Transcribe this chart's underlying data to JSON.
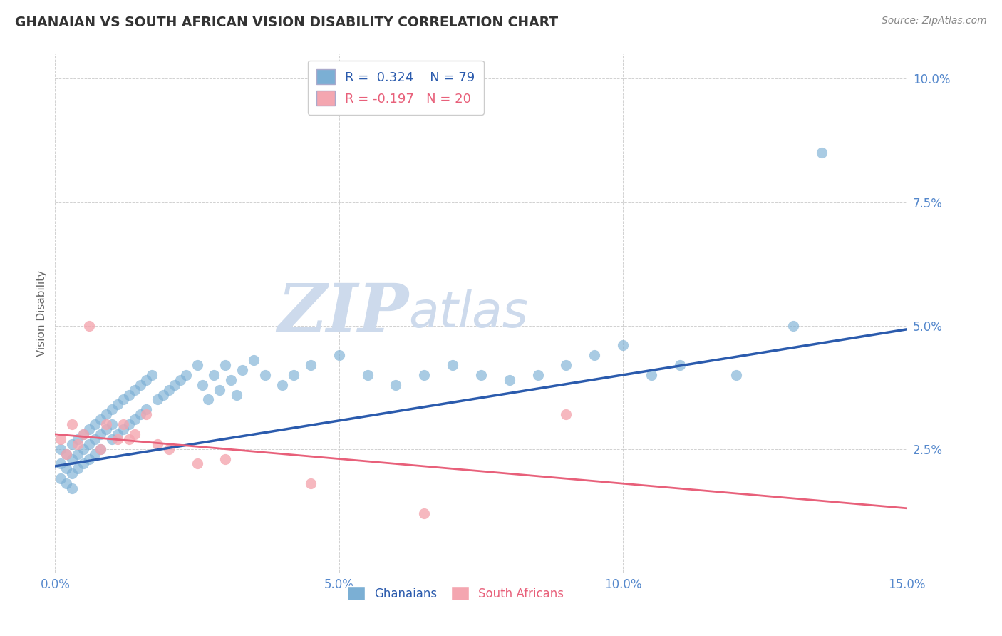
{
  "title": "GHANAIAN VS SOUTH AFRICAN VISION DISABILITY CORRELATION CHART",
  "source": "Source: ZipAtlas.com",
  "ylabel": "Vision Disability",
  "xlabel": "",
  "xlim": [
    0.0,
    0.15
  ],
  "ylim": [
    0.0,
    0.105
  ],
  "xticks": [
    0.0,
    0.05,
    0.1,
    0.15
  ],
  "xtick_labels": [
    "0.0%",
    "5.0%",
    "10.0%",
    "15.0%"
  ],
  "yticks": [
    0.025,
    0.05,
    0.075,
    0.1
  ],
  "ytick_labels": [
    "2.5%",
    "5.0%",
    "7.5%",
    "10.0%"
  ],
  "blue_color": "#7BAFD4",
  "pink_color": "#F4A6B0",
  "line_blue": "#2B5BAD",
  "line_pink": "#E8607A",
  "R_blue": 0.324,
  "N_blue": 79,
  "R_pink": -0.197,
  "N_pink": 20,
  "blue_intercept": 0.0215,
  "blue_slope": 0.185,
  "pink_intercept": 0.028,
  "pink_slope": -0.1,
  "blue_x": [
    0.001,
    0.001,
    0.001,
    0.002,
    0.002,
    0.002,
    0.003,
    0.003,
    0.003,
    0.003,
    0.004,
    0.004,
    0.004,
    0.005,
    0.005,
    0.005,
    0.006,
    0.006,
    0.006,
    0.007,
    0.007,
    0.007,
    0.008,
    0.008,
    0.008,
    0.009,
    0.009,
    0.01,
    0.01,
    0.01,
    0.011,
    0.011,
    0.012,
    0.012,
    0.013,
    0.013,
    0.014,
    0.014,
    0.015,
    0.015,
    0.016,
    0.016,
    0.017,
    0.018,
    0.019,
    0.02,
    0.021,
    0.022,
    0.023,
    0.025,
    0.026,
    0.027,
    0.028,
    0.029,
    0.03,
    0.031,
    0.032,
    0.033,
    0.035,
    0.037,
    0.04,
    0.042,
    0.045,
    0.05,
    0.055,
    0.06,
    0.065,
    0.07,
    0.075,
    0.08,
    0.085,
    0.09,
    0.095,
    0.1,
    0.105,
    0.11,
    0.12,
    0.13,
    0.135
  ],
  "blue_y": [
    0.025,
    0.022,
    0.019,
    0.024,
    0.021,
    0.018,
    0.026,
    0.023,
    0.02,
    0.017,
    0.027,
    0.024,
    0.021,
    0.028,
    0.025,
    0.022,
    0.029,
    0.026,
    0.023,
    0.03,
    0.027,
    0.024,
    0.031,
    0.028,
    0.025,
    0.032,
    0.029,
    0.033,
    0.03,
    0.027,
    0.034,
    0.028,
    0.035,
    0.029,
    0.036,
    0.03,
    0.037,
    0.031,
    0.038,
    0.032,
    0.039,
    0.033,
    0.04,
    0.035,
    0.036,
    0.037,
    0.038,
    0.039,
    0.04,
    0.042,
    0.038,
    0.035,
    0.04,
    0.037,
    0.042,
    0.039,
    0.036,
    0.041,
    0.043,
    0.04,
    0.038,
    0.04,
    0.042,
    0.044,
    0.04,
    0.038,
    0.04,
    0.042,
    0.04,
    0.039,
    0.04,
    0.042,
    0.044,
    0.046,
    0.04,
    0.042,
    0.04,
    0.05,
    0.085
  ],
  "pink_x": [
    0.001,
    0.002,
    0.003,
    0.004,
    0.005,
    0.006,
    0.008,
    0.009,
    0.011,
    0.012,
    0.013,
    0.014,
    0.016,
    0.018,
    0.02,
    0.025,
    0.03,
    0.045,
    0.065,
    0.09
  ],
  "pink_y": [
    0.027,
    0.024,
    0.03,
    0.026,
    0.028,
    0.05,
    0.025,
    0.03,
    0.027,
    0.03,
    0.027,
    0.028,
    0.032,
    0.026,
    0.025,
    0.022,
    0.023,
    0.018,
    0.012,
    0.032
  ],
  "background_color": "#ffffff",
  "grid_color": "#cccccc",
  "title_color": "#333333",
  "watermark_zip": "ZIP",
  "watermark_atlas": "atlas",
  "watermark_color": "#cddaec"
}
